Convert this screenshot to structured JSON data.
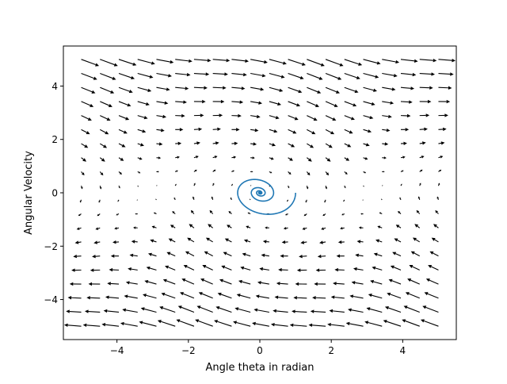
{
  "chart_data": {
    "type": "quiver",
    "title": "",
    "xlabel": "Angle theta in radian",
    "ylabel": "Angular Velocity",
    "xlim": [
      -5.5,
      5.5
    ],
    "ylim": [
      -5.5,
      5.5
    ],
    "xticks": [
      -4,
      -2,
      0,
      2,
      4
    ],
    "yticks": [
      -4,
      -2,
      0,
      2,
      4
    ],
    "grid": false,
    "legend": "none",
    "field": {
      "x_range": [
        -5,
        5
      ],
      "y_range": [
        -5,
        5
      ],
      "count": 20,
      "equation": "dtheta/dt = omega, domega/dt = -sin(theta) - 0.3*omega",
      "arrow_color": "#000000"
    },
    "trajectory": {
      "start": [
        1.0,
        0.0
      ],
      "center": [
        0.0,
        0.0
      ],
      "color": "#1f77b4"
    }
  }
}
